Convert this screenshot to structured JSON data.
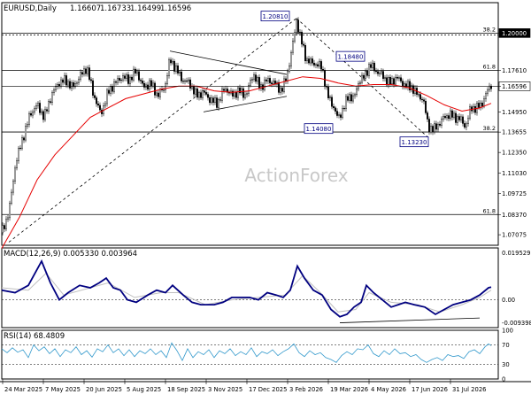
{
  "header": {
    "symbol": "EURUSD,Daily",
    "open": "1.16607",
    "high": "1.16733",
    "low": "1.16499",
    "close": "1.16596"
  },
  "watermark": "ActionForex",
  "colors": {
    "candle": "#000000",
    "ma": "#e60000",
    "macd": "#000080",
    "signal": "#c0c0c0",
    "rsi": "#3399cc",
    "trendline": "#000000",
    "grid_level": "#000000",
    "current_price_bg": "#ffffff",
    "label_box": "#000080"
  },
  "chart_data": [
    {
      "type": "candlestick",
      "title": "EURUSD,Daily",
      "y_ticks": [
        "1.20000",
        "1.17610",
        "1.16596",
        "1.14950",
        "1.13655",
        "1.12350",
        "1.11030",
        "1.09725",
        "1.08370",
        "1.07075"
      ],
      "ylim": [
        1.064,
        1.2195
      ],
      "x_ticks": [
        "24 Mar 2025",
        "7 May 2025",
        "20 Jun 2025",
        "5 Aug 2025",
        "18 Sep 2025",
        "3 Nov 2025",
        "17 Dec 2025",
        "3 Feb 2026",
        "19 Mar 2026",
        "4 May 2026",
        "17 Jun 2026",
        "31 Jul 2026"
      ],
      "current_price": "1.16596",
      "fib_levels": [
        {
          "label": "38.2",
          "price": 1.2
        },
        {
          "label": "61.8",
          "price": 1.1761
        },
        {
          "label": "38.2",
          "price": 1.1366
        },
        {
          "label": "61.8",
          "price": 1.0837
        }
      ],
      "price_labels": [
        "1.20810",
        "1.18480",
        "1.14080",
        "1.13230"
      ],
      "close_path": [
        [
          0,
          1.072
        ],
        [
          8,
          1.085
        ],
        [
          16,
          1.118
        ],
        [
          24,
          1.133
        ],
        [
          32,
          1.148
        ],
        [
          40,
          1.154
        ],
        [
          48,
          1.146
        ],
        [
          56,
          1.16
        ],
        [
          64,
          1.168
        ],
        [
          72,
          1.17
        ],
        [
          80,
          1.165
        ],
        [
          88,
          1.172
        ],
        [
          96,
          1.178
        ],
        [
          104,
          1.16
        ],
        [
          112,
          1.148
        ],
        [
          120,
          1.162
        ],
        [
          128,
          1.168
        ],
        [
          136,
          1.172
        ],
        [
          144,
          1.17
        ],
        [
          152,
          1.176
        ],
        [
          160,
          1.165
        ],
        [
          168,
          1.168
        ],
        [
          176,
          1.16
        ],
        [
          184,
          1.165
        ],
        [
          190,
          1.183
        ],
        [
          196,
          1.178
        ],
        [
          204,
          1.17
        ],
        [
          212,
          1.168
        ],
        [
          220,
          1.16
        ],
        [
          228,
          1.162
        ],
        [
          236,
          1.157
        ],
        [
          244,
          1.155
        ],
        [
          252,
          1.165
        ],
        [
          260,
          1.16
        ],
        [
          268,
          1.163
        ],
        [
          276,
          1.16
        ],
        [
          284,
          1.174
        ],
        [
          292,
          1.165
        ],
        [
          300,
          1.17
        ],
        [
          308,
          1.168
        ],
        [
          316,
          1.163
        ],
        [
          322,
          1.172
        ],
        [
          328,
          1.19
        ],
        [
          333,
          1.208
        ],
        [
          338,
          1.196
        ],
        [
          344,
          1.183
        ],
        [
          350,
          1.181
        ],
        [
          356,
          1.18
        ],
        [
          362,
          1.178
        ],
        [
          368,
          1.16
        ],
        [
          374,
          1.154
        ],
        [
          380,
          1.145
        ],
        [
          386,
          1.152
        ],
        [
          392,
          1.16
        ],
        [
          398,
          1.158
        ],
        [
          404,
          1.17
        ],
        [
          410,
          1.172
        ],
        [
          416,
          1.18
        ],
        [
          422,
          1.176
        ],
        [
          428,
          1.174
        ],
        [
          434,
          1.17
        ],
        [
          440,
          1.168
        ],
        [
          446,
          1.172
        ],
        [
          452,
          1.168
        ],
        [
          458,
          1.166
        ],
        [
          464,
          1.165
        ],
        [
          470,
          1.16
        ],
        [
          476,
          1.158
        ],
        [
          482,
          1.14
        ],
        [
          488,
          1.138
        ],
        [
          494,
          1.142
        ],
        [
          500,
          1.146
        ],
        [
          506,
          1.148
        ],
        [
          512,
          1.146
        ],
        [
          518,
          1.145
        ],
        [
          524,
          1.14
        ],
        [
          530,
          1.152
        ],
        [
          536,
          1.152
        ],
        [
          542,
          1.154
        ],
        [
          548,
          1.162
        ],
        [
          553,
          1.167
        ]
      ],
      "ma_path": [
        [
          0,
          1.062
        ],
        [
          20,
          1.082
        ],
        [
          40,
          1.106
        ],
        [
          60,
          1.122
        ],
        [
          80,
          1.134
        ],
        [
          100,
          1.146
        ],
        [
          120,
          1.152
        ],
        [
          140,
          1.158
        ],
        [
          160,
          1.161
        ],
        [
          180,
          1.164
        ],
        [
          200,
          1.166
        ],
        [
          220,
          1.166
        ],
        [
          240,
          1.163
        ],
        [
          260,
          1.162
        ],
        [
          280,
          1.163
        ],
        [
          300,
          1.166
        ],
        [
          320,
          1.169
        ],
        [
          340,
          1.172
        ],
        [
          360,
          1.171
        ],
        [
          380,
          1.168
        ],
        [
          400,
          1.166
        ],
        [
          420,
          1.167
        ],
        [
          440,
          1.167
        ],
        [
          460,
          1.165
        ],
        [
          480,
          1.16
        ],
        [
          500,
          1.154
        ],
        [
          520,
          1.15
        ],
        [
          540,
          1.152
        ],
        [
          553,
          1.155
        ]
      ]
    },
    {
      "type": "line",
      "title": "MACD(12,26,9) 0.005330 0.003964",
      "y_ticks": [
        "0.019529",
        "0.00",
        "-0.009398"
      ],
      "ylim": [
        -0.0115,
        0.0215
      ],
      "macd": [
        [
          0,
          0.004
        ],
        [
          15,
          0.003
        ],
        [
          30,
          0.006
        ],
        [
          45,
          0.016
        ],
        [
          55,
          0.007
        ],
        [
          65,
          0.0
        ],
        [
          75,
          0.003
        ],
        [
          88,
          0.006
        ],
        [
          100,
          0.005
        ],
        [
          110,
          0.007
        ],
        [
          118,
          0.009
        ],
        [
          126,
          0.005
        ],
        [
          134,
          0.004
        ],
        [
          142,
          0.0
        ],
        [
          152,
          -0.001
        ],
        [
          165,
          0.002
        ],
        [
          175,
          0.004
        ],
        [
          185,
          0.003
        ],
        [
          193,
          0.006
        ],
        [
          205,
          0.002
        ],
        [
          215,
          -0.001
        ],
        [
          225,
          -0.002
        ],
        [
          240,
          -0.002
        ],
        [
          250,
          -0.001
        ],
        [
          260,
          0.001
        ],
        [
          270,
          0.001
        ],
        [
          280,
          0.001
        ],
        [
          290,
          0.0
        ],
        [
          300,
          0.003
        ],
        [
          310,
          0.002
        ],
        [
          318,
          0.001
        ],
        [
          326,
          0.004
        ],
        [
          334,
          0.014
        ],
        [
          342,
          0.009
        ],
        [
          352,
          0.004
        ],
        [
          362,
          0.002
        ],
        [
          372,
          -0.004
        ],
        [
          382,
          -0.007
        ],
        [
          390,
          -0.006
        ],
        [
          398,
          -0.003
        ],
        [
          406,
          -0.001
        ],
        [
          412,
          0.006
        ],
        [
          420,
          0.003
        ],
        [
          430,
          0.0
        ],
        [
          440,
          -0.003
        ],
        [
          448,
          -0.002
        ],
        [
          456,
          -0.001
        ],
        [
          466,
          -0.002
        ],
        [
          478,
          -0.003
        ],
        [
          490,
          -0.006
        ],
        [
          500,
          -0.004
        ],
        [
          510,
          -0.002
        ],
        [
          520,
          -0.001
        ],
        [
          530,
          0.0
        ],
        [
          540,
          0.002
        ],
        [
          550,
          0.005
        ],
        [
          553,
          0.0053
        ]
      ],
      "signal": [
        [
          0,
          0.005
        ],
        [
          30,
          0.004
        ],
        [
          50,
          0.011
        ],
        [
          70,
          0.002
        ],
        [
          100,
          0.005
        ],
        [
          120,
          0.007
        ],
        [
          150,
          0.001
        ],
        [
          180,
          0.003
        ],
        [
          200,
          0.003
        ],
        [
          230,
          -0.002
        ],
        [
          260,
          0.0
        ],
        [
          290,
          0.001
        ],
        [
          320,
          0.002
        ],
        [
          340,
          0.01
        ],
        [
          360,
          0.003
        ],
        [
          380,
          -0.005
        ],
        [
          400,
          -0.004
        ],
        [
          415,
          0.003
        ],
        [
          440,
          -0.001
        ],
        [
          470,
          -0.002
        ],
        [
          495,
          -0.005
        ],
        [
          520,
          -0.002
        ],
        [
          540,
          0.001
        ],
        [
          553,
          0.004
        ]
      ],
      "divergence_line": [
        [
          382,
          -0.0095
        ],
        [
          540,
          -0.0075
        ]
      ]
    },
    {
      "type": "line",
      "title": "RSI(14) 68.4809",
      "y_ticks": [
        "100",
        "70",
        "30",
        "0"
      ],
      "ylim": [
        0,
        100
      ],
      "values": [
        [
          0,
          62
        ],
        [
          6,
          54
        ],
        [
          12,
          64
        ],
        [
          18,
          55
        ],
        [
          24,
          60
        ],
        [
          30,
          44
        ],
        [
          36,
          70
        ],
        [
          42,
          58
        ],
        [
          48,
          66
        ],
        [
          54,
          52
        ],
        [
          60,
          62
        ],
        [
          66,
          46
        ],
        [
          72,
          60
        ],
        [
          78,
          54
        ],
        [
          84,
          66
        ],
        [
          90,
          50
        ],
        [
          96,
          58
        ],
        [
          102,
          45
        ],
        [
          108,
          62
        ],
        [
          114,
          56
        ],
        [
          120,
          70
        ],
        [
          126,
          54
        ],
        [
          132,
          62
        ],
        [
          138,
          48
        ],
        [
          144,
          60
        ],
        [
          150,
          46
        ],
        [
          156,
          58
        ],
        [
          162,
          52
        ],
        [
          168,
          62
        ],
        [
          174,
          50
        ],
        [
          180,
          58
        ],
        [
          186,
          44
        ],
        [
          192,
          74
        ],
        [
          198,
          58
        ],
        [
          204,
          38
        ],
        [
          210,
          62
        ],
        [
          216,
          44
        ],
        [
          222,
          56
        ],
        [
          228,
          50
        ],
        [
          234,
          60
        ],
        [
          240,
          44
        ],
        [
          246,
          58
        ],
        [
          252,
          52
        ],
        [
          258,
          62
        ],
        [
          264,
          48
        ],
        [
          270,
          56
        ],
        [
          276,
          50
        ],
        [
          282,
          64
        ],
        [
          288,
          46
        ],
        [
          294,
          56
        ],
        [
          300,
          52
        ],
        [
          306,
          60
        ],
        [
          312,
          48
        ],
        [
          318,
          56
        ],
        [
          324,
          62
        ],
        [
          330,
          72
        ],
        [
          336,
          54
        ],
        [
          342,
          46
        ],
        [
          348,
          58
        ],
        [
          354,
          50
        ],
        [
          360,
          54
        ],
        [
          366,
          44
        ],
        [
          372,
          40
        ],
        [
          378,
          34
        ],
        [
          384,
          48
        ],
        [
          390,
          56
        ],
        [
          396,
          50
        ],
        [
          402,
          62
        ],
        [
          408,
          60
        ],
        [
          414,
          70
        ],
        [
          420,
          52
        ],
        [
          426,
          46
        ],
        [
          432,
          58
        ],
        [
          438,
          50
        ],
        [
          444,
          62
        ],
        [
          450,
          52
        ],
        [
          456,
          54
        ],
        [
          462,
          46
        ],
        [
          468,
          50
        ],
        [
          474,
          40
        ],
        [
          480,
          34
        ],
        [
          486,
          40
        ],
        [
          492,
          44
        ],
        [
          498,
          38
        ],
        [
          504,
          50
        ],
        [
          510,
          46
        ],
        [
          516,
          48
        ],
        [
          522,
          42
        ],
        [
          528,
          56
        ],
        [
          534,
          60
        ],
        [
          540,
          52
        ],
        [
          546,
          66
        ],
        [
          550,
          72
        ],
        [
          553,
          68.5
        ]
      ]
    }
  ]
}
